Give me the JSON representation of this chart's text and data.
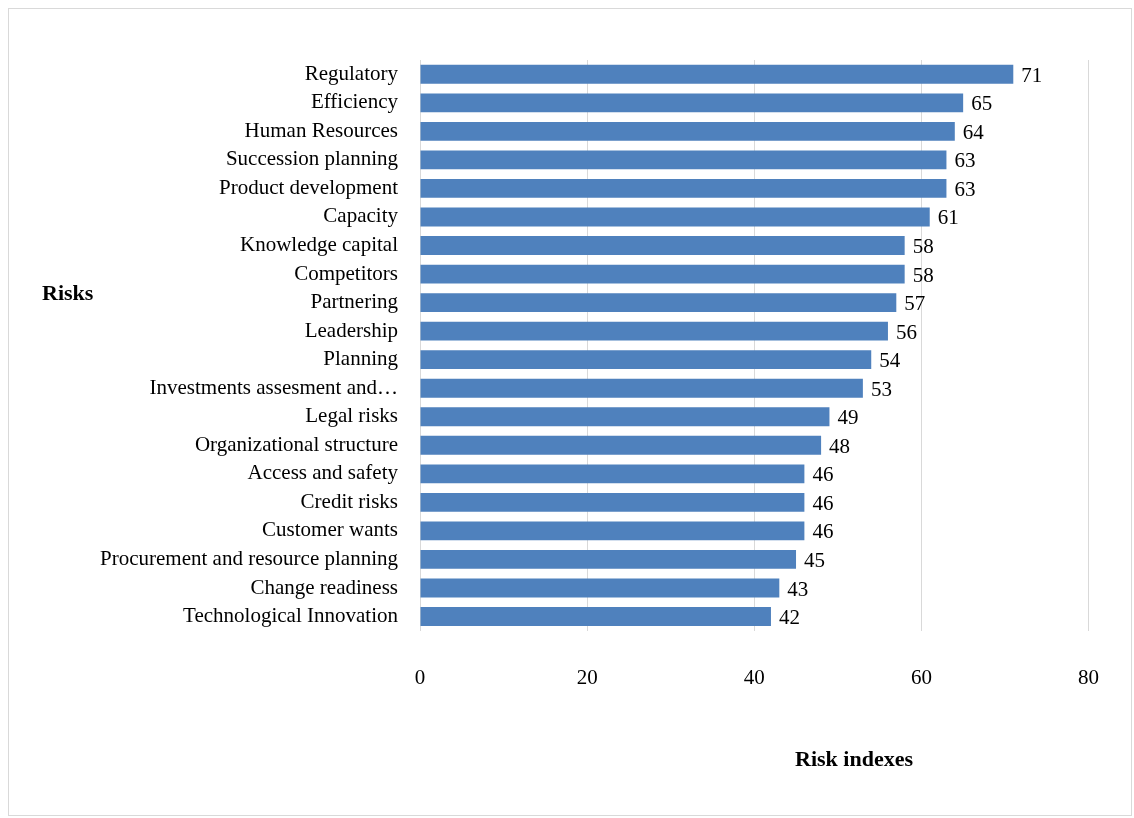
{
  "chart_data": {
    "type": "bar",
    "orientation": "horizontal",
    "xlabel": "Risk indexes",
    "ylabel": "Risks",
    "categories": [
      "Regulatory",
      "Efficiency",
      "Human Resources",
      "Succession planning",
      "Product development",
      "Capacity",
      "Knowledge capital",
      "Competitors",
      "Partnering",
      "Leadership",
      "Planning",
      "Investments assesment and…",
      "Legal risks",
      "Organizational structure",
      "Access and safety",
      "Credit risks",
      "Customer wants",
      "Procurement and resource planning",
      "Change readiness",
      "Technological Innovation"
    ],
    "values": [
      71,
      65,
      64,
      63,
      63,
      61,
      58,
      58,
      57,
      56,
      54,
      53,
      49,
      48,
      46,
      46,
      46,
      45,
      43,
      42
    ],
    "color": "#4f81bd",
    "xlim": [
      0,
      80
    ],
    "xticks": [
      0,
      20,
      40,
      60,
      80
    ],
    "grid": "x",
    "data_labels": true
  }
}
